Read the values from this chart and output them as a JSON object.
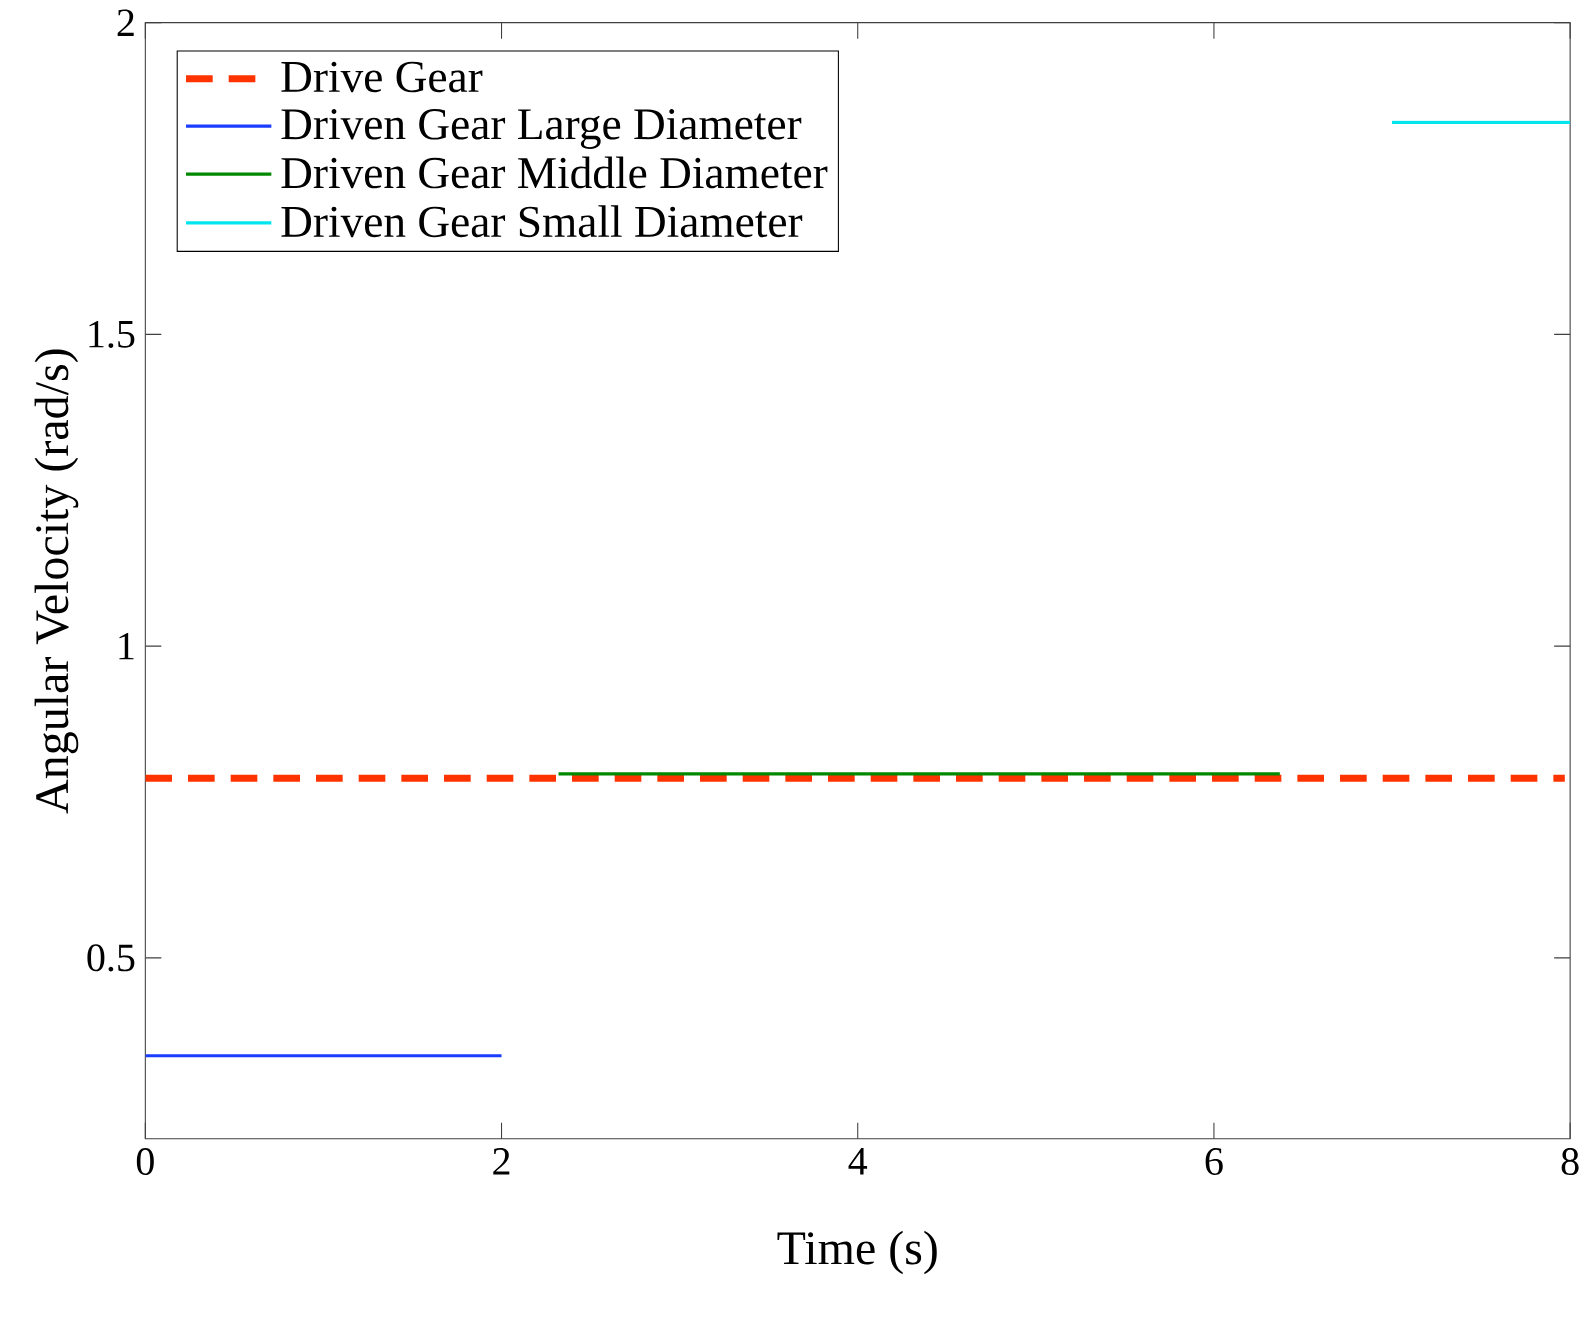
{
  "chart_data": {
    "type": "line",
    "xlabel": "Time (s)",
    "ylabel": "Angular Velocity (rad/s)",
    "xlim": [
      0,
      8
    ],
    "ylim": [
      0.21,
      2
    ],
    "xticks": [
      0,
      2,
      4,
      6,
      8
    ],
    "yticks": [
      0.5,
      1,
      1.5,
      2
    ],
    "grid": false,
    "legend": "top left",
    "series": [
      {
        "name": "Drive Gear",
        "color": "#ff3300",
        "line_style": "dashed",
        "x": [
          0,
          7.97
        ],
        "values": [
          0.788,
          0.788
        ]
      },
      {
        "name": "Driven Gear Large Diameter",
        "color": "#1a3dff",
        "x": [
          0,
          2
        ],
        "values": [
          0.343,
          0.343
        ]
      },
      {
        "name": "Driven Gear Middle Diameter",
        "color": "#008800",
        "x": [
          2.32,
          6.37
        ],
        "values": [
          0.795,
          0.795
        ]
      },
      {
        "name": "Driven Gear Small Diameter",
        "color": "#00e5ee",
        "x": [
          7,
          8
        ],
        "values": [
          1.84,
          1.84
        ]
      }
    ]
  }
}
